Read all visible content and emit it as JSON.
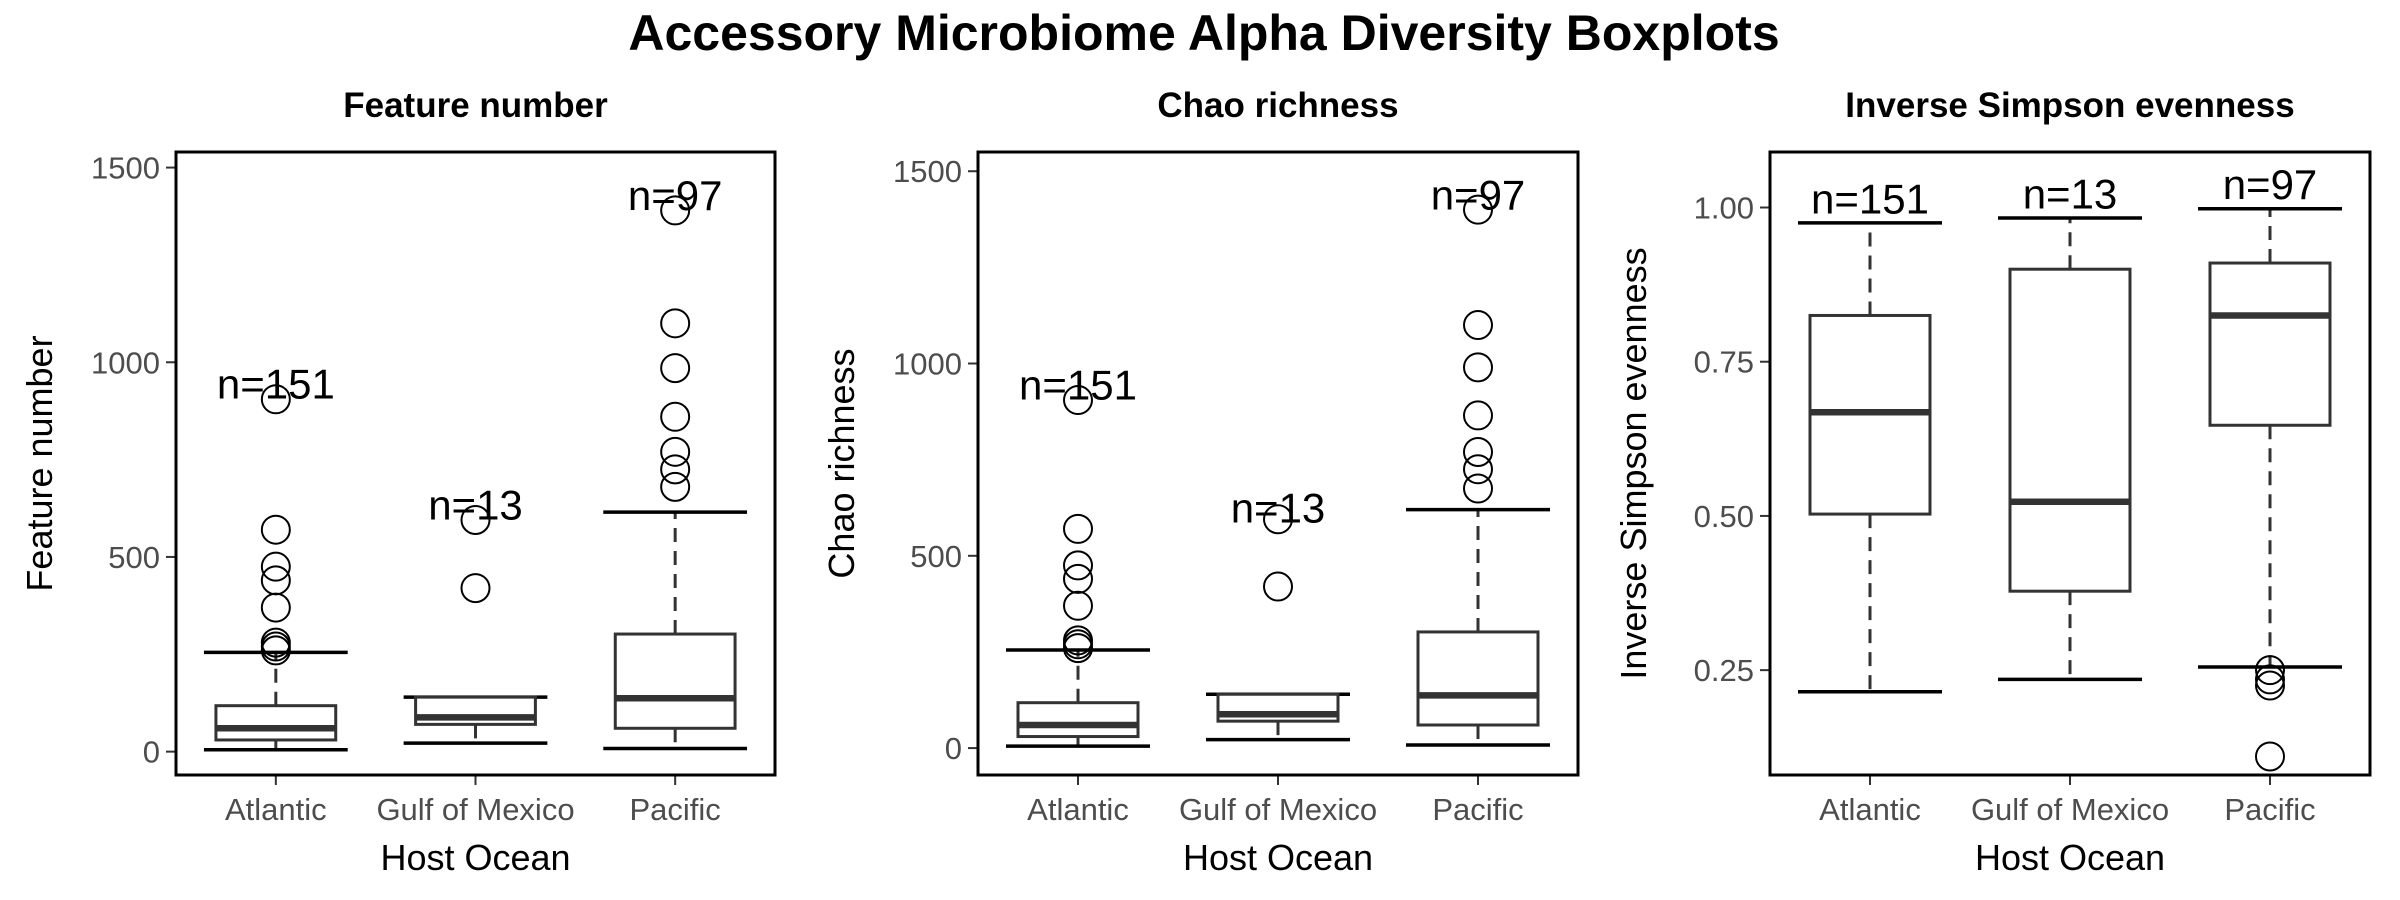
{
  "title": "Accessory Microbiome Alpha Diversity Boxplots",
  "chart_data": [
    {
      "type": "boxplot",
      "title": "Feature number",
      "xlabel": "Host Ocean",
      "ylabel": "Feature number",
      "categories": [
        "Atlantic",
        "Gulf of Mexico",
        "Pacific"
      ],
      "ylim": [
        -60,
        1540
      ],
      "yticks": [
        0,
        500,
        1000,
        1500
      ],
      "grid": false,
      "boxes": [
        {
          "label": "Atlantic",
          "whisker_low": 5,
          "q1": 30,
          "median": 60,
          "q3": 118,
          "whisker_high": 255,
          "outliers": [
            260,
            270,
            280,
            370,
            440,
            475,
            570,
            905
          ],
          "n_label": "n=151",
          "n_y": 945
        },
        {
          "label": "Gulf of Mexico",
          "whisker_low": 22,
          "q1": 70,
          "median": 88,
          "q3": 140,
          "whisker_high": 140,
          "outliers": [
            420,
            595
          ],
          "n_label": "n=13",
          "n_y": 635
        },
        {
          "label": "Pacific",
          "whisker_low": 8,
          "q1": 60,
          "median": 137,
          "q3": 302,
          "whisker_high": 615,
          "outliers": [
            680,
            725,
            770,
            860,
            985,
            1100,
            1390
          ],
          "n_label": "n=97",
          "n_y": 1430
        }
      ]
    },
    {
      "type": "boxplot",
      "title": "Chao richness",
      "xlabel": "Host Ocean",
      "ylabel": "Chao richness",
      "categories": [
        "Atlantic",
        "Gulf of Mexico",
        "Pacific"
      ],
      "ylim": [
        -70,
        1550
      ],
      "yticks": [
        0,
        500,
        1000,
        1500
      ],
      "grid": false,
      "boxes": [
        {
          "label": "Atlantic",
          "whisker_low": 5,
          "q1": 30,
          "median": 60,
          "q3": 118,
          "whisker_high": 255,
          "outliers": [
            260,
            270,
            280,
            370,
            440,
            475,
            570,
            905
          ],
          "n_label": "n=151",
          "n_y": 945
        },
        {
          "label": "Gulf of Mexico",
          "whisker_low": 22,
          "q1": 70,
          "median": 88,
          "q3": 140,
          "whisker_high": 140,
          "outliers": [
            420,
            595
          ],
          "n_label": "n=13",
          "n_y": 625
        },
        {
          "label": "Pacific",
          "whisker_low": 8,
          "q1": 60,
          "median": 137,
          "q3": 302,
          "whisker_high": 620,
          "outliers": [
            675,
            725,
            770,
            865,
            990,
            1100,
            1400
          ],
          "n_label": "n=97",
          "n_y": 1440
        }
      ]
    },
    {
      "type": "boxplot",
      "title": "Inverse Simpson evenness",
      "xlabel": "Host Ocean",
      "ylabel": "Inverse Simpson evenness",
      "categories": [
        "Atlantic",
        "Gulf of Mexico",
        "Pacific"
      ],
      "ylim": [
        0.08,
        1.09
      ],
      "yticks": [
        0.25,
        0.5,
        0.75,
        1.0
      ],
      "ytick_labels": [
        "0.25",
        "0.50",
        "0.75",
        "1.00"
      ],
      "grid": false,
      "boxes": [
        {
          "label": "Atlantic",
          "whisker_low": 0.215,
          "q1": 0.503,
          "median": 0.668,
          "q3": 0.825,
          "whisker_high": 0.975,
          "outliers": [],
          "n_label": "n=151",
          "n_y": 1.015
        },
        {
          "label": "Gulf of Mexico",
          "whisker_low": 0.235,
          "q1": 0.378,
          "median": 0.523,
          "q3": 0.9,
          "whisker_high": 0.983,
          "outliers": [],
          "n_label": "n=13",
          "n_y": 1.023
        },
        {
          "label": "Pacific",
          "whisker_low": 0.255,
          "q1": 0.647,
          "median": 0.825,
          "q3": 0.91,
          "whisker_high": 0.998,
          "outliers": [
            0.11,
            0.225,
            0.235,
            0.25
          ],
          "n_label": "n=97",
          "n_y": 1.038
        }
      ]
    }
  ]
}
